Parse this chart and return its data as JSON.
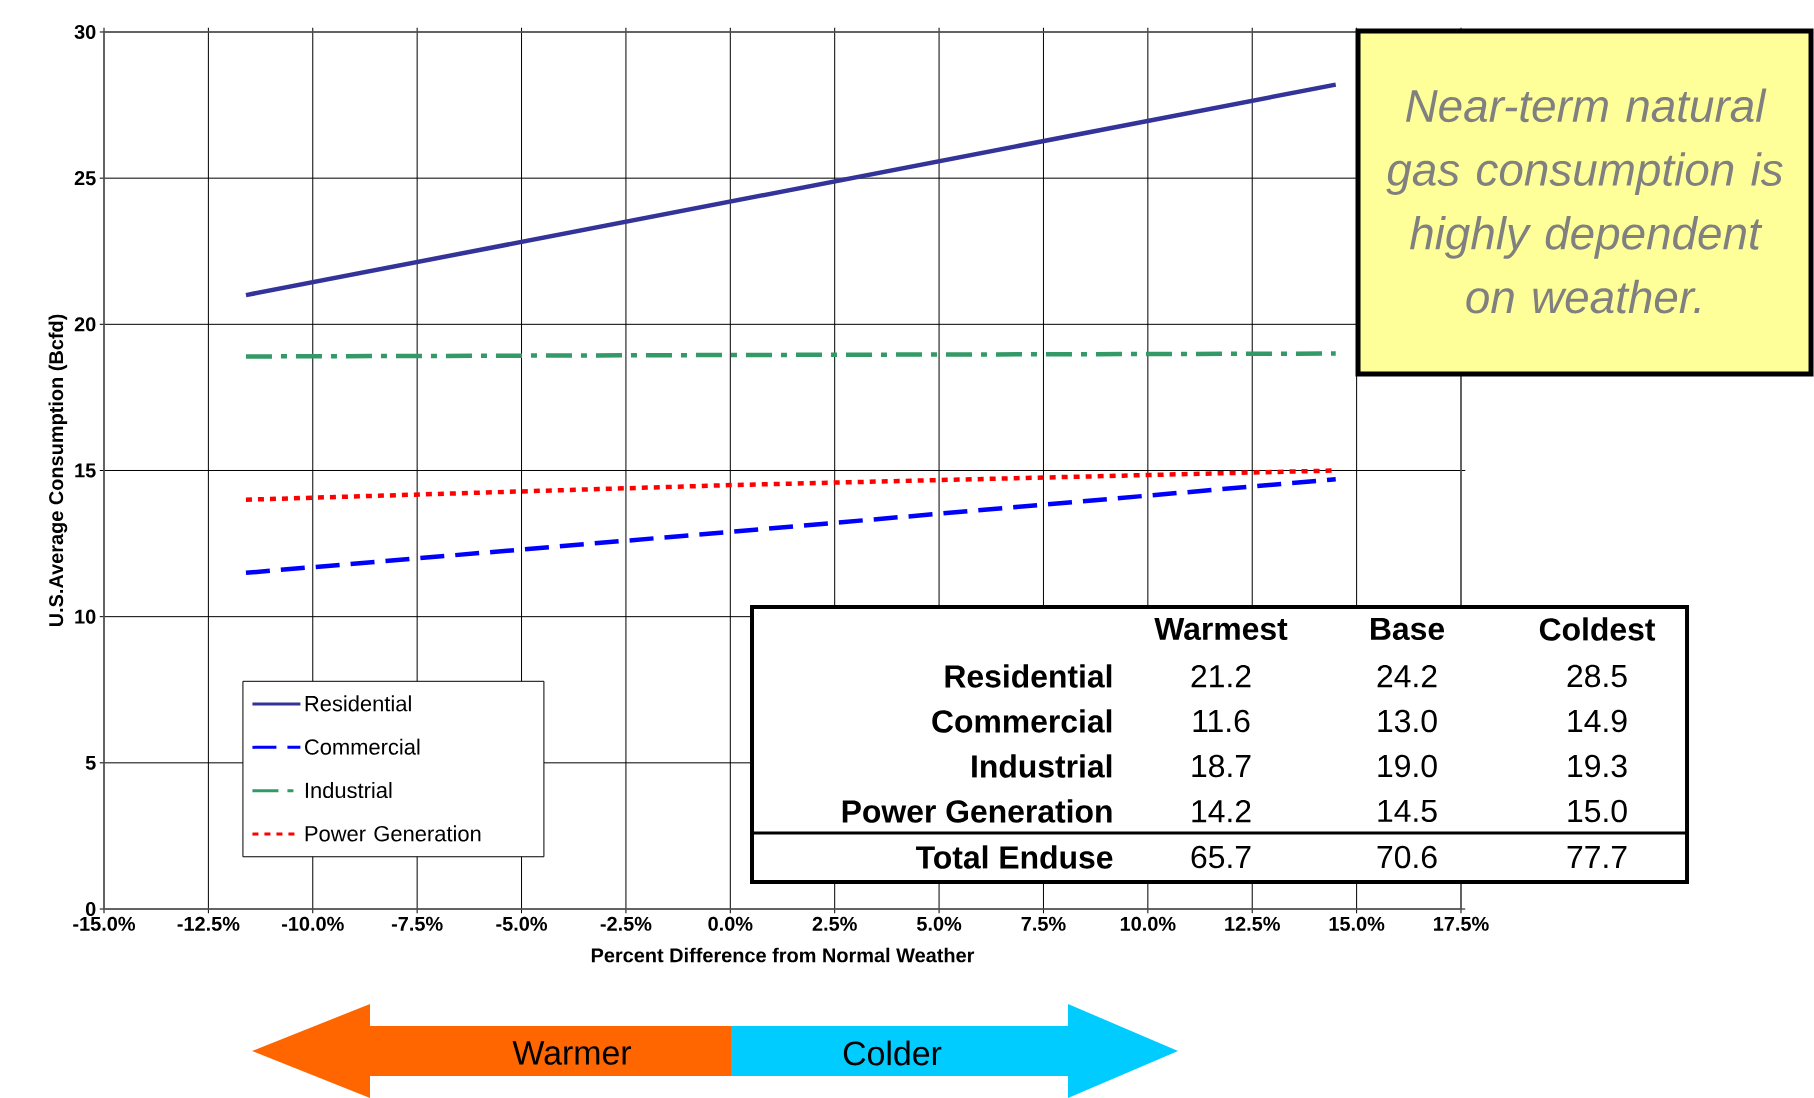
{
  "chart_data": {
    "type": "line",
    "xlabel": "Percent Difference from Normal Weather",
    "ylabel": "U.S.Average Consumption (Bcfd)",
    "x": [
      -11.6,
      0,
      14.5
    ],
    "series": [
      {
        "name": "Residential",
        "color": "#333399",
        "line_style": "solid",
        "values": [
          21.0,
          24.2,
          28.2
        ]
      },
      {
        "name": "Commercial",
        "color": "#0000ff",
        "line_style": "dashed",
        "values": [
          11.5,
          12.9,
          14.7
        ]
      },
      {
        "name": "Industrial",
        "color": "#339966",
        "line_style": "dashdot",
        "values": [
          18.9,
          18.95,
          19.0
        ]
      },
      {
        "name": "Power Generation",
        "color": "#ff0000",
        "line_style": "dotted",
        "values": [
          14.0,
          14.5,
          15.0
        ]
      }
    ],
    "xlim": [
      -15,
      17.5
    ],
    "xticks": [
      {
        "value": -15,
        "label": "-15.0%"
      },
      {
        "value": -12.5,
        "label": "-12.5%"
      },
      {
        "value": -10,
        "label": "-10.0%"
      },
      {
        "value": -7.5,
        "label": "-7.5%"
      },
      {
        "value": -5,
        "label": "-5.0%"
      },
      {
        "value": -2.5,
        "label": "-2.5%"
      },
      {
        "value": 0,
        "label": "0.0%"
      },
      {
        "value": 2.5,
        "label": "2.5%"
      },
      {
        "value": 5,
        "label": "5.0%"
      },
      {
        "value": 7.5,
        "label": "7.5%"
      },
      {
        "value": 10,
        "label": "10.0%"
      },
      {
        "value": 12.5,
        "label": "12.5%"
      },
      {
        "value": 15,
        "label": "15.0%"
      },
      {
        "value": 17.5,
        "label": "17.5%"
      }
    ],
    "ylim": [
      0,
      30
    ],
    "yticks": [
      0,
      5,
      10,
      15,
      20,
      25,
      30
    ],
    "grid": true,
    "legend": "bottom left",
    "marker": "none",
    "annotations": [
      "Near-term natural gas consumption is highly dependent on weather.",
      "Warmer",
      "Colder",
      "Warmest",
      "Base",
      "Coldest",
      "Residential",
      "21.2",
      "24.2",
      "28.5",
      "Commercial",
      "11.6",
      "13.0",
      "14.9",
      "Industrial",
      "18.7",
      "19.0",
      "19.3",
      "Power Generation",
      "14.2",
      "14.5",
      "15.0",
      "Total Enduse",
      "65.7",
      "70.6",
      "77.7"
    ]
  }
}
